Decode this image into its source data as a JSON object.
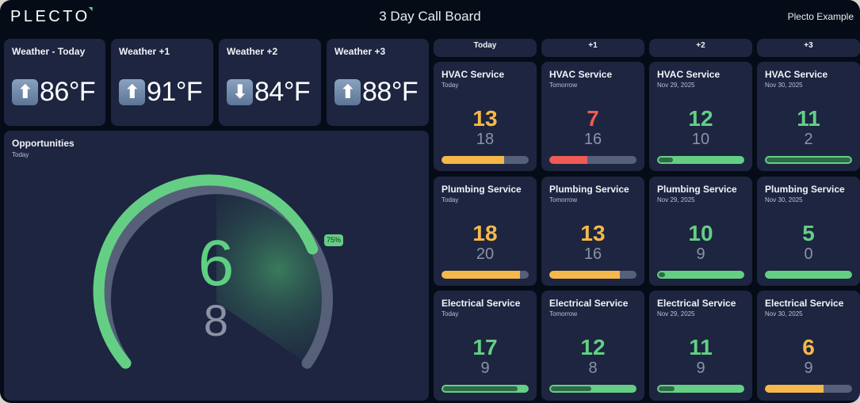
{
  "header": {
    "logo": "PLECTO",
    "title": "3 Day Call Board",
    "account": "Plecto Example"
  },
  "weather": [
    {
      "title": "Weather - Today",
      "direction": "up",
      "arrow": "⬆",
      "value": "86°F"
    },
    {
      "title": "Weather +1",
      "direction": "up",
      "arrow": "⬆",
      "value": "91°F"
    },
    {
      "title": "Weather +2",
      "direction": "down",
      "arrow": "⬇",
      "value": "84°F"
    },
    {
      "title": "Weather +3",
      "direction": "up",
      "arrow": "⬆",
      "value": "88°F"
    }
  ],
  "opportunities": {
    "title": "Opportunities",
    "subtitle": "Today",
    "value": "6",
    "target": "8",
    "percent_label": "75%",
    "percent": 75
  },
  "columns": [
    "Today",
    "+1",
    "+2",
    "+3"
  ],
  "services": [
    [
      {
        "title": "HVAC Service",
        "date": "Today",
        "value": "13",
        "target": "18",
        "status": "warning",
        "fill": 72
      },
      {
        "title": "HVAC Service",
        "date": "Tomorrow",
        "value": "7",
        "target": "16",
        "status": "danger",
        "fill": 44
      },
      {
        "title": "HVAC Service",
        "date": "Nov 29, 2025",
        "value": "12",
        "target": "10",
        "status": "success",
        "fill": 100,
        "over": 20
      },
      {
        "title": "HVAC Service",
        "date": "Nov 30, 2025",
        "value": "11",
        "target": "2",
        "status": "success",
        "fill": 100,
        "over": 100
      }
    ],
    [
      {
        "title": "Plumbing Service",
        "date": "Today",
        "value": "18",
        "target": "20",
        "status": "warning",
        "fill": 90
      },
      {
        "title": "Plumbing Service",
        "date": "Tomorrow",
        "value": "13",
        "target": "16",
        "status": "warning",
        "fill": 81
      },
      {
        "title": "Plumbing Service",
        "date": "Nov 29, 2025",
        "value": "10",
        "target": "9",
        "status": "success",
        "fill": 100,
        "over": 11
      },
      {
        "title": "Plumbing Service",
        "date": "Nov 30, 2025",
        "value": "5",
        "target": "0",
        "status": "success",
        "fill": 100,
        "over": 0
      }
    ],
    [
      {
        "title": "Electrical Service",
        "date": "Today",
        "value": "17",
        "target": "9",
        "status": "success",
        "fill": 100,
        "over": 89
      },
      {
        "title": "Electrical Service",
        "date": "Tomorrow",
        "value": "12",
        "target": "8",
        "status": "success",
        "fill": 100,
        "over": 50
      },
      {
        "title": "Electrical Service",
        "date": "Nov 29, 2025",
        "value": "11",
        "target": "9",
        "status": "success",
        "fill": 100,
        "over": 22
      },
      {
        "title": "Electrical Service",
        "date": "Nov 30, 2025",
        "value": "6",
        "target": "9",
        "status": "warning",
        "fill": 67
      }
    ]
  ],
  "colors": {
    "background": "#060c17",
    "card": "#1d2540",
    "success": "#64cf84",
    "warning": "#f6b84a",
    "danger": "#ef5a55",
    "track": "#566079",
    "target_text": "#8c93a6"
  }
}
